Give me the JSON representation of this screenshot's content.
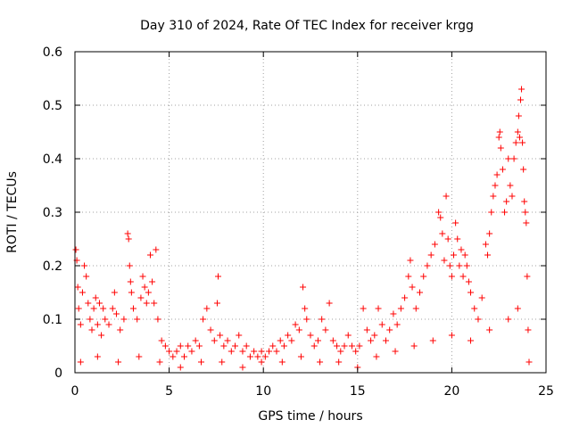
{
  "chart_data": {
    "type": "scatter",
    "title": "Day 310 of 2024, Rate Of TEC Index for receiver krgg",
    "xlabel": "GPS time / hours",
    "ylabel": "ROTI / TECUs",
    "xlim": [
      0,
      25
    ],
    "ylim": [
      0,
      0.6
    ],
    "xticks": [
      0,
      5,
      10,
      15,
      20,
      25
    ],
    "xtick_labels": [
      "0",
      "5",
      "10",
      "15",
      "20",
      "25"
    ],
    "yticks": [
      0,
      0.1,
      0.2,
      0.3,
      0.4,
      0.5,
      0.6
    ],
    "ytick_labels": [
      "0",
      "0.1",
      "0.2",
      "0.3",
      "0.4",
      "0.5",
      "0.6"
    ],
    "grid": true,
    "marker": "plus",
    "color": "#ff0000",
    "series": [
      {
        "name": "",
        "points": [
          [
            0.05,
            0.23
          ],
          [
            0.1,
            0.21
          ],
          [
            0.15,
            0.16
          ],
          [
            0.2,
            0.12
          ],
          [
            0.3,
            0.09
          ],
          [
            0.4,
            0.15
          ],
          [
            0.5,
            0.2
          ],
          [
            0.6,
            0.18
          ],
          [
            0.7,
            0.13
          ],
          [
            0.8,
            0.1
          ],
          [
            0.9,
            0.08
          ],
          [
            1.0,
            0.12
          ],
          [
            1.1,
            0.14
          ],
          [
            1.2,
            0.09
          ],
          [
            1.3,
            0.13
          ],
          [
            1.4,
            0.07
          ],
          [
            1.5,
            0.12
          ],
          [
            1.6,
            0.1
          ],
          [
            1.8,
            0.09
          ],
          [
            2.0,
            0.12
          ],
          [
            2.1,
            0.15
          ],
          [
            2.2,
            0.11
          ],
          [
            2.4,
            0.08
          ],
          [
            2.6,
            0.1
          ],
          [
            2.8,
            0.26
          ],
          [
            2.85,
            0.25
          ],
          [
            2.9,
            0.2
          ],
          [
            2.95,
            0.17
          ],
          [
            3.0,
            0.15
          ],
          [
            3.1,
            0.12
          ],
          [
            3.3,
            0.1
          ],
          [
            3.5,
            0.14
          ],
          [
            3.6,
            0.18
          ],
          [
            3.7,
            0.16
          ],
          [
            3.8,
            0.13
          ],
          [
            3.9,
            0.15
          ],
          [
            4.0,
            0.22
          ],
          [
            4.1,
            0.17
          ],
          [
            4.2,
            0.13
          ],
          [
            4.3,
            0.23
          ],
          [
            4.4,
            0.1
          ],
          [
            4.6,
            0.06
          ],
          [
            4.8,
            0.05
          ],
          [
            5.0,
            0.04
          ],
          [
            5.2,
            0.03
          ],
          [
            5.4,
            0.04
          ],
          [
            5.6,
            0.05
          ],
          [
            5.8,
            0.03
          ],
          [
            6.0,
            0.05
          ],
          [
            6.2,
            0.04
          ],
          [
            6.4,
            0.06
          ],
          [
            6.6,
            0.05
          ],
          [
            6.8,
            0.1
          ],
          [
            7.0,
            0.12
          ],
          [
            7.2,
            0.08
          ],
          [
            7.4,
            0.06
          ],
          [
            7.55,
            0.13
          ],
          [
            7.6,
            0.18
          ],
          [
            7.7,
            0.07
          ],
          [
            7.9,
            0.05
          ],
          [
            8.1,
            0.06
          ],
          [
            8.3,
            0.04
          ],
          [
            8.5,
            0.05
          ],
          [
            8.7,
            0.07
          ],
          [
            8.9,
            0.04
          ],
          [
            9.1,
            0.05
          ],
          [
            9.3,
            0.03
          ],
          [
            9.5,
            0.04
          ],
          [
            9.7,
            0.03
          ],
          [
            9.9,
            0.04
          ],
          [
            10.1,
            0.03
          ],
          [
            10.3,
            0.04
          ],
          [
            10.5,
            0.05
          ],
          [
            10.7,
            0.04
          ],
          [
            10.9,
            0.06
          ],
          [
            11.1,
            0.05
          ],
          [
            11.3,
            0.07
          ],
          [
            11.5,
            0.06
          ],
          [
            11.7,
            0.09
          ],
          [
            11.9,
            0.08
          ],
          [
            12.1,
            0.16
          ],
          [
            12.2,
            0.12
          ],
          [
            12.3,
            0.1
          ],
          [
            12.5,
            0.07
          ],
          [
            12.7,
            0.05
          ],
          [
            12.9,
            0.06
          ],
          [
            13.1,
            0.1
          ],
          [
            13.3,
            0.08
          ],
          [
            13.5,
            0.13
          ],
          [
            13.7,
            0.06
          ],
          [
            13.9,
            0.05
          ],
          [
            14.1,
            0.04
          ],
          [
            14.3,
            0.05
          ],
          [
            14.5,
            0.07
          ],
          [
            14.7,
            0.05
          ],
          [
            14.9,
            0.04
          ],
          [
            15.1,
            0.05
          ],
          [
            15.3,
            0.12
          ],
          [
            15.5,
            0.08
          ],
          [
            15.7,
            0.06
          ],
          [
            15.9,
            0.07
          ],
          [
            16.1,
            0.12
          ],
          [
            16.3,
            0.09
          ],
          [
            16.5,
            0.06
          ],
          [
            16.7,
            0.08
          ],
          [
            16.9,
            0.11
          ],
          [
            17.1,
            0.09
          ],
          [
            17.3,
            0.12
          ],
          [
            17.5,
            0.14
          ],
          [
            17.7,
            0.18
          ],
          [
            17.8,
            0.21
          ],
          [
            17.9,
            0.16
          ],
          [
            18.1,
            0.12
          ],
          [
            18.3,
            0.15
          ],
          [
            18.5,
            0.18
          ],
          [
            18.7,
            0.2
          ],
          [
            18.9,
            0.22
          ],
          [
            19.1,
            0.24
          ],
          [
            19.3,
            0.3
          ],
          [
            19.4,
            0.29
          ],
          [
            19.5,
            0.26
          ],
          [
            19.6,
            0.21
          ],
          [
            19.7,
            0.33
          ],
          [
            19.8,
            0.25
          ],
          [
            19.9,
            0.2
          ],
          [
            20.0,
            0.18
          ],
          [
            20.1,
            0.22
          ],
          [
            20.2,
            0.28
          ],
          [
            20.3,
            0.25
          ],
          [
            20.4,
            0.2
          ],
          [
            20.5,
            0.23
          ],
          [
            20.6,
            0.18
          ],
          [
            20.7,
            0.22
          ],
          [
            20.8,
            0.2
          ],
          [
            20.9,
            0.17
          ],
          [
            21.0,
            0.15
          ],
          [
            21.2,
            0.12
          ],
          [
            21.4,
            0.1
          ],
          [
            21.6,
            0.14
          ],
          [
            21.8,
            0.24
          ],
          [
            21.9,
            0.22
          ],
          [
            22.0,
            0.26
          ],
          [
            22.1,
            0.3
          ],
          [
            22.2,
            0.33
          ],
          [
            22.3,
            0.35
          ],
          [
            22.4,
            0.37
          ],
          [
            22.5,
            0.44
          ],
          [
            22.55,
            0.45
          ],
          [
            22.6,
            0.42
          ],
          [
            22.7,
            0.38
          ],
          [
            22.8,
            0.3
          ],
          [
            22.9,
            0.32
          ],
          [
            23.0,
            0.4
          ],
          [
            23.1,
            0.35
          ],
          [
            23.2,
            0.33
          ],
          [
            23.3,
            0.4
          ],
          [
            23.4,
            0.43
          ],
          [
            23.5,
            0.45
          ],
          [
            23.55,
            0.48
          ],
          [
            23.6,
            0.44
          ],
          [
            23.65,
            0.51
          ],
          [
            23.7,
            0.53
          ],
          [
            23.75,
            0.43
          ],
          [
            23.8,
            0.38
          ],
          [
            23.85,
            0.32
          ],
          [
            23.9,
            0.3
          ],
          [
            23.95,
            0.28
          ],
          [
            24.0,
            0.18
          ],
          [
            24.05,
            0.08
          ],
          [
            24.1,
            0.02
          ],
          [
            0.3,
            0.02
          ],
          [
            1.2,
            0.03
          ],
          [
            2.3,
            0.02
          ],
          [
            3.4,
            0.03
          ],
          [
            4.5,
            0.02
          ],
          [
            5.6,
            0.01
          ],
          [
            6.7,
            0.02
          ],
          [
            7.8,
            0.02
          ],
          [
            8.9,
            0.01
          ],
          [
            9.9,
            0.02
          ],
          [
            11.0,
            0.02
          ],
          [
            12.0,
            0.03
          ],
          [
            13.0,
            0.02
          ],
          [
            14.0,
            0.02
          ],
          [
            15.0,
            0.01
          ],
          [
            16.0,
            0.03
          ],
          [
            17.0,
            0.04
          ],
          [
            18.0,
            0.05
          ],
          [
            19.0,
            0.06
          ],
          [
            20.0,
            0.07
          ],
          [
            21.0,
            0.06
          ],
          [
            22.0,
            0.08
          ],
          [
            23.0,
            0.1
          ],
          [
            23.5,
            0.12
          ]
        ]
      }
    ]
  }
}
